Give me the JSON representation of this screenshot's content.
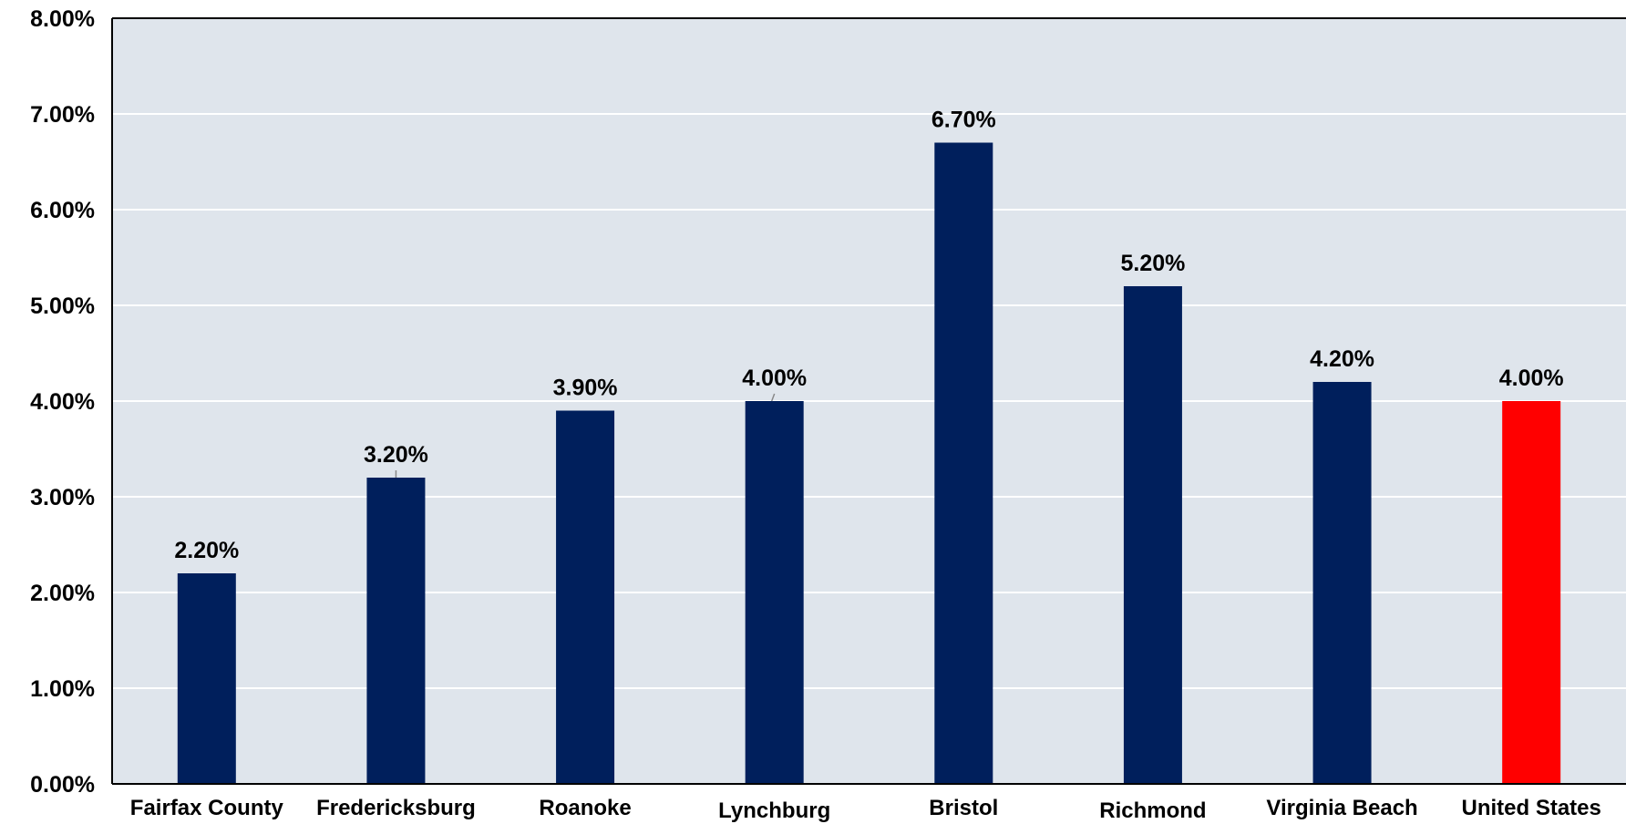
{
  "chart_data": {
    "type": "bar",
    "title": "",
    "xlabel": "",
    "ylabel": "",
    "categories": [
      "Fairfax County",
      "Fredericksburg",
      "Roanoke",
      "Lynchburg",
      "Bristol",
      "Richmond",
      "Virginia Beach",
      "United States"
    ],
    "values": [
      2.2,
      3.2,
      3.9,
      4.0,
      6.7,
      5.2,
      4.2,
      4.0
    ],
    "data_labels": [
      "2.20%",
      "3.20%",
      "3.90%",
      "4.00%",
      "6.70%",
      "5.20%",
      "4.20%",
      "4.00%"
    ],
    "ylim": [
      0,
      8
    ],
    "y_ticks": [
      0,
      1,
      2,
      3,
      4,
      5,
      6,
      7,
      8
    ],
    "y_tick_labels": [
      "0.00%",
      "1.00%",
      "2.00%",
      "3.00%",
      "4.00%",
      "5.00%",
      "6.00%",
      "7.00%",
      "8.00%"
    ],
    "grid": true,
    "legend": "none",
    "colors": {
      "bar": "#001f5c",
      "highlight_bar": "#ff0000",
      "plot_background": "#dfe5ec",
      "gridline": "#ffffff",
      "axis": "#000000"
    },
    "highlight_category": "United States"
  }
}
